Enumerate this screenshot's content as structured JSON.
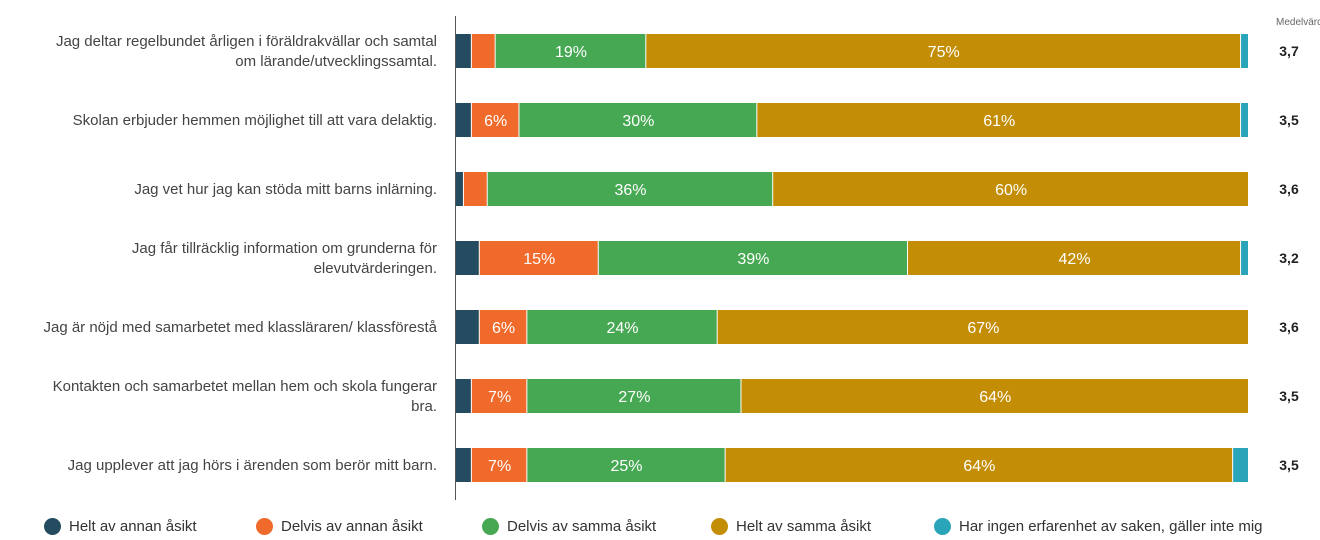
{
  "chart_data": {
    "type": "bar",
    "orientation": "horizontal",
    "stacked": true,
    "categories": [
      "Jag deltar regelbundet årligen i föräldrakvällar och samtal om lärande/utvecklingssamtal.",
      "Skolan erbjuder hemmen möjlighet till att vara delaktig.",
      "Jag vet hur jag kan stöda mitt barns inlärning.",
      "Jag får tillräcklig information om grunderna för elevutvärderingen.",
      "Jag är nöjd med samarbetet med klassläraren/ klassföreståndaren.",
      "Kontakten och samarbetet mellan hem och skola fungerar bra.",
      "Jag upplever att jag hörs i ärenden som berör mitt barn."
    ],
    "category_lines": [
      [
        "Jag deltar regelbundet årligen i föräldrakvällar och samtal",
        "om lärande/utvecklingssamtal."
      ],
      [
        "Skolan erbjuder hemmen möjlighet till att vara delaktig."
      ],
      [
        "Jag vet hur jag kan stöda mitt barns inlärning."
      ],
      [
        "Jag får tillräcklig information om grunderna för",
        "elevutvärderingen."
      ],
      [
        "Jag är nöjd med samarbetet med klassläraren/ klassförestå"
      ],
      [
        "Kontakten och samarbetet mellan hem och skola fungerar",
        "bra."
      ],
      [
        "Jag upplever att jag hörs i ärenden som berör mitt barn."
      ]
    ],
    "series": [
      {
        "name": "Helt av annan åsikt",
        "color": "#244b5f",
        "values": [
          2,
          2,
          1,
          3,
          3,
          2,
          2
        ]
      },
      {
        "name": "Delvis av annan åsikt",
        "color": "#ef6a2b",
        "values": [
          3,
          6,
          3,
          15,
          6,
          7,
          7
        ]
      },
      {
        "name": "Delvis av samma åsikt",
        "color": "#47a853",
        "values": [
          19,
          30,
          36,
          39,
          24,
          27,
          25
        ]
      },
      {
        "name": "Helt av samma åsikt",
        "color": "#c38d05",
        "values": [
          75,
          61,
          60,
          42,
          67,
          64,
          64
        ]
      },
      {
        "name": "Har ingen erfarenhet av saken, gäller inte mig",
        "color": "#2aa4b8",
        "values": [
          1,
          1,
          0,
          1,
          0,
          0,
          2
        ]
      }
    ],
    "labels": [
      [
        "",
        "",
        "19%",
        "75%",
        ""
      ],
      [
        "",
        "6%",
        "30%",
        "61%",
        ""
      ],
      [
        "",
        "",
        "36%",
        "60%",
        ""
      ],
      [
        "",
        "15%",
        "39%",
        "42%",
        ""
      ],
      [
        "",
        "6%",
        "24%",
        "67%",
        ""
      ],
      [
        "",
        "7%",
        "27%",
        "64%",
        ""
      ],
      [
        "",
        "7%",
        "25%",
        "64%",
        ""
      ]
    ],
    "mean_header": "Medelvärde",
    "means": [
      "3,7",
      "3,5",
      "3,6",
      "3,2",
      "3,6",
      "3,5",
      "3,5"
    ],
    "xlim": [
      0,
      100
    ]
  },
  "legend": [
    {
      "label": "Helt av annan åsikt",
      "color": "#244b5f"
    },
    {
      "label": "Delvis av annan åsikt",
      "color": "#ef6a2b"
    },
    {
      "label": "Delvis av samma åsikt",
      "color": "#47a853"
    },
    {
      "label": "Helt av samma åsikt",
      "color": "#c38d05"
    },
    {
      "label": "Har ingen erfarenhet av saken, gäller inte mig",
      "color": "#2aa4b8"
    }
  ]
}
